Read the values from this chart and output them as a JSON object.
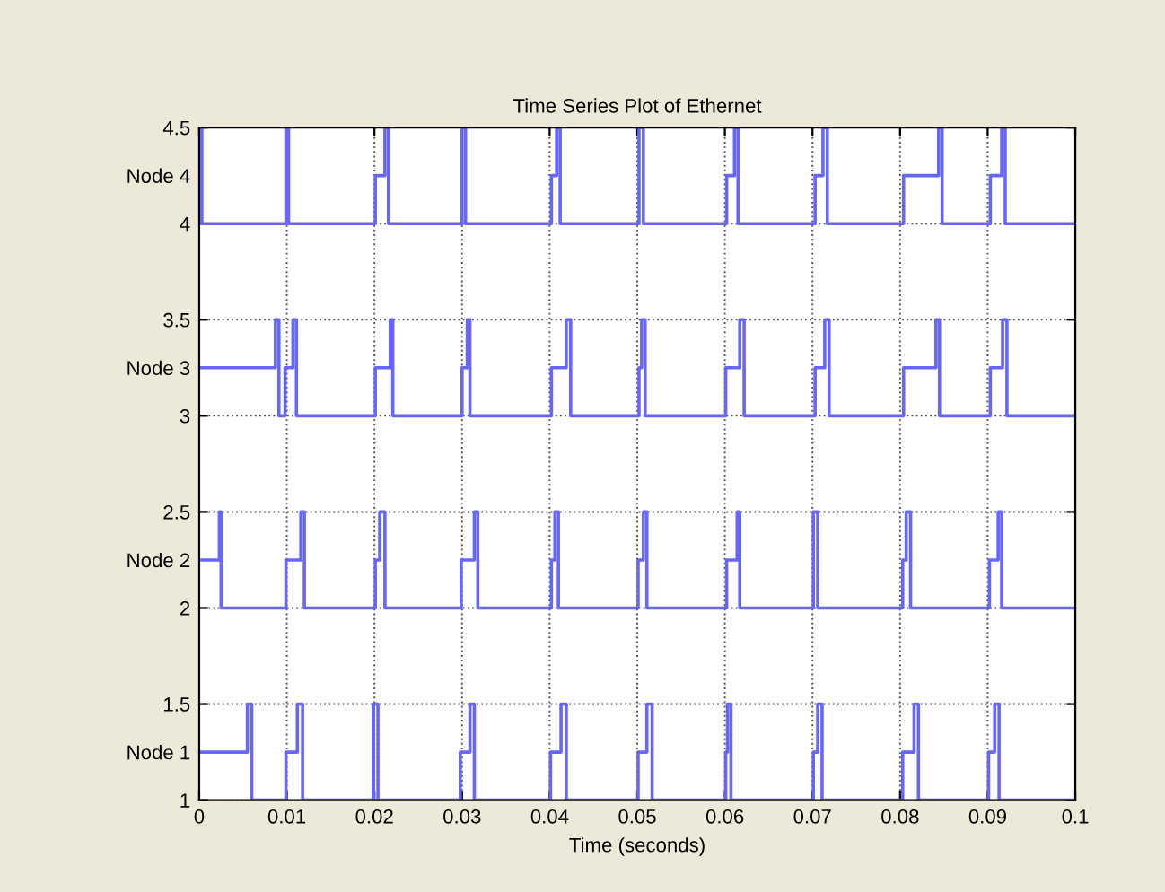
{
  "chart_data": {
    "type": "step",
    "title": "Time Series Plot of Ethernet",
    "xlabel": "Time (seconds)",
    "xlim": [
      0,
      0.1
    ],
    "xticks": [
      0,
      0.01,
      0.02,
      0.03,
      0.04,
      0.05,
      0.06,
      0.07,
      0.08,
      0.09,
      0.1
    ],
    "ylim": [
      1,
      4.5
    ],
    "yticks": [
      1,
      {
        "value": 1.25,
        "label": "Node 1"
      },
      1.5,
      2,
      {
        "value": 2.25,
        "label": "Node 2"
      },
      2.5,
      3,
      {
        "value": 3.25,
        "label": "Node 3"
      },
      3.5,
      4,
      {
        "value": 4.25,
        "label": "Node 4"
      },
      4.5
    ],
    "grid": true,
    "line_style": "solid",
    "marker": "none",
    "series": [
      {
        "color": "#6666ff",
        "x": [
          0,
          0.0055,
          0.006,
          0.0099,
          0.0112,
          0.0118,
          0.0199,
          0.0204,
          0.0298,
          0.0309,
          0.0314,
          0.0401,
          0.0413,
          0.0419,
          0.0501,
          0.0511,
          0.0517,
          0.0601,
          0.0603,
          0.0607,
          0.0701,
          0.0706,
          0.0711,
          0.0803,
          0.0816,
          0.0821,
          0.0901,
          0.0908,
          0.0913,
          0.1
        ],
        "values": [
          1.25,
          1.5,
          1,
          1.25,
          1.5,
          1,
          1.5,
          1,
          1.25,
          1.5,
          1,
          1.25,
          1.5,
          1,
          1.25,
          1.5,
          1,
          1.25,
          1.5,
          1,
          1.25,
          1.5,
          1,
          1.25,
          1.5,
          1,
          1.25,
          1.5,
          1,
          1
        ]
      },
      {
        "color": "#6666ff",
        "x": [
          0,
          0.0023,
          0.0025,
          0.0099,
          0.0116,
          0.012,
          0.0201,
          0.0206,
          0.0212,
          0.0299,
          0.0314,
          0.0318,
          0.0402,
          0.0406,
          0.041,
          0.0501,
          0.0507,
          0.0511,
          0.0602,
          0.0614,
          0.0617,
          0.0701,
          0.0706,
          0.0803,
          0.0807,
          0.0812,
          0.0902,
          0.0912,
          0.0916,
          0.1
        ],
        "values": [
          2.25,
          2.5,
          2,
          2.25,
          2.5,
          2,
          2.25,
          2.5,
          2,
          2.25,
          2.5,
          2,
          2.25,
          2.5,
          2,
          2.25,
          2.5,
          2,
          2.25,
          2.5,
          2,
          2.5,
          2,
          2.25,
          2.5,
          2,
          2.25,
          2.5,
          2,
          2
        ]
      },
      {
        "color": "#6666ff",
        "x": [
          0,
          0.0087,
          0.0091,
          0.0098,
          0.0107,
          0.0111,
          0.0201,
          0.0218,
          0.0221,
          0.03,
          0.0306,
          0.0309,
          0.0402,
          0.0419,
          0.0424,
          0.0502,
          0.0505,
          0.0509,
          0.0601,
          0.0617,
          0.0622,
          0.0703,
          0.0714,
          0.0719,
          0.0804,
          0.0841,
          0.0845,
          0.0903,
          0.0917,
          0.0922,
          0.1
        ],
        "values": [
          3.25,
          3.5,
          3,
          3.25,
          3.5,
          3,
          3.25,
          3.5,
          3,
          3.25,
          3.5,
          3,
          3.25,
          3.5,
          3,
          3.25,
          3.5,
          3,
          3.25,
          3.5,
          3,
          3.25,
          3.5,
          3,
          3.25,
          3.5,
          3,
          3.25,
          3.5,
          3,
          3
        ]
      },
      {
        "color": "#6666ff",
        "x": [
          0,
          0.0003,
          0.0099,
          0.0102,
          0.0201,
          0.0212,
          0.0216,
          0.03,
          0.0304,
          0.0402,
          0.0408,
          0.0412,
          0.0502,
          0.0507,
          0.0602,
          0.0611,
          0.0615,
          0.0703,
          0.0712,
          0.0717,
          0.0804,
          0.0844,
          0.0848,
          0.0903,
          0.0916,
          0.092,
          0.1
        ],
        "values": [
          4.5,
          4,
          4.5,
          4,
          4.25,
          4.5,
          4,
          4.5,
          4,
          4.25,
          4.5,
          4,
          4.5,
          4,
          4.25,
          4.5,
          4,
          4.25,
          4.5,
          4,
          4.25,
          4.5,
          4,
          4.25,
          4.5,
          4,
          4
        ]
      }
    ]
  }
}
